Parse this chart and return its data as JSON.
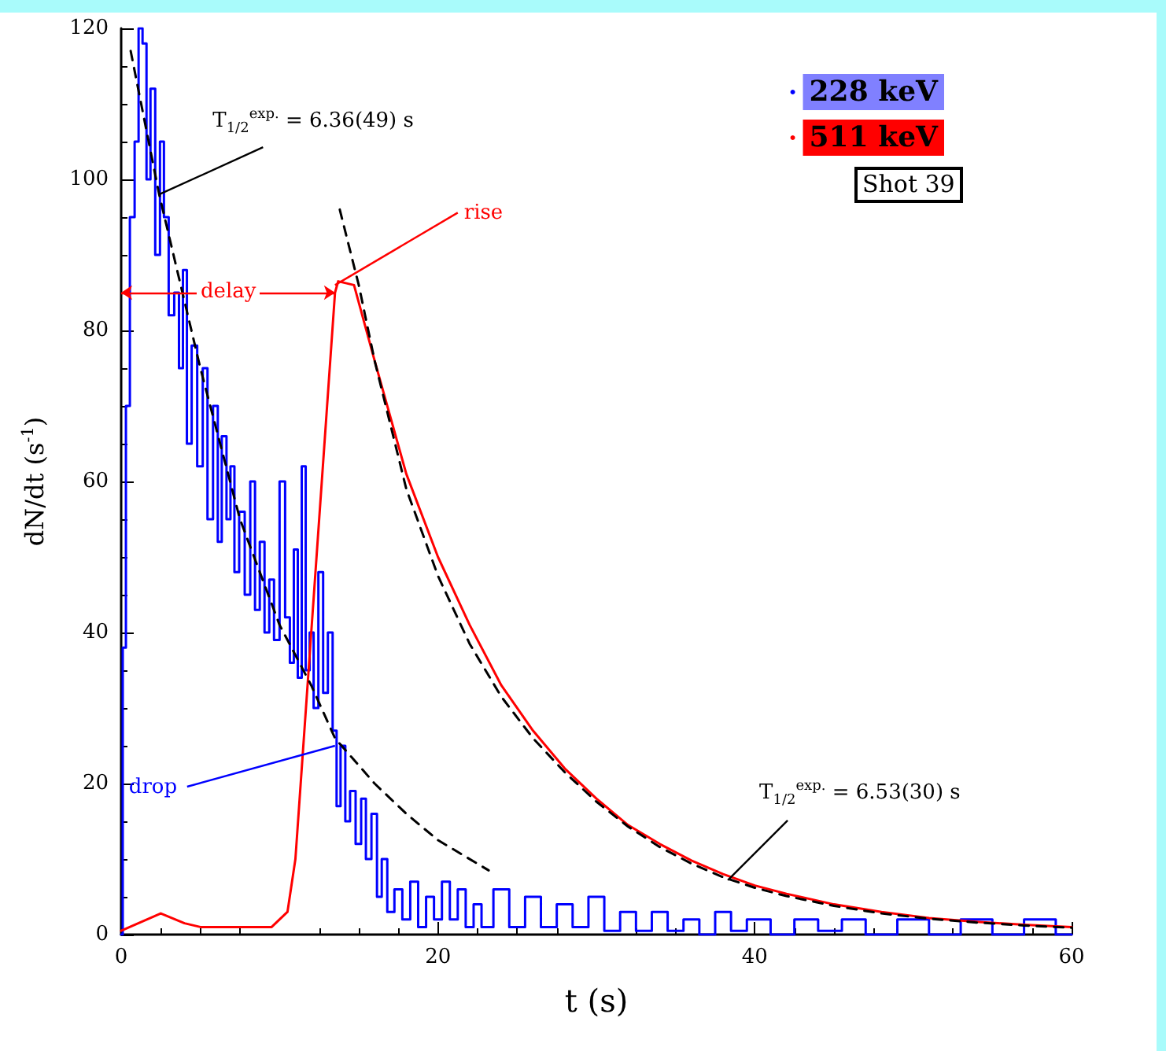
{
  "chart_data": {
    "type": "line",
    "xlabel": "t (s)",
    "ylabel": "dN/dt (s$^{-1}$)",
    "xlim": [
      0,
      60
    ],
    "xticks": [
      0,
      20,
      40,
      60
    ],
    "ylim": [
      0,
      120
    ],
    "yticks": [
      0,
      20,
      40,
      60,
      80,
      100,
      120
    ],
    "grid": false,
    "legend": "top right",
    "marker": "none",
    "series": [
      {
        "name": "228 keV",
        "type": "step",
        "color": "#0000ff",
        "x": [
          0,
          0.2,
          0.4,
          0.7,
          1,
          1.2,
          1.5,
          1.7,
          2,
          2.3,
          2.6,
          2.8,
          3.2,
          3.5,
          3.8,
          4,
          4.3,
          4.6,
          5,
          5.3,
          5.6,
          6,
          6.2,
          6.5,
          6.8,
          7,
          7.3,
          7.6,
          8,
          8.3,
          8.6,
          8.9,
          9.2,
          9.5,
          9.8,
          10.2,
          10.5,
          10.8,
          11,
          11.3,
          11.5,
          11.8,
          12,
          12.3,
          12.6,
          12.9,
          13.2,
          13.5,
          13.7,
          14,
          14.3,
          14.6,
          15,
          15.3,
          15.6,
          16,
          16.3,
          16.6,
          17,
          17.5,
          18,
          18.5,
          19,
          19.5,
          20,
          20.5,
          21,
          21.5,
          22,
          22.5,
          23,
          24,
          25,
          26,
          27,
          28,
          29,
          30,
          31,
          32,
          33,
          34,
          35,
          36,
          37,
          38,
          39,
          40,
          42,
          43,
          45,
          46,
          48,
          50,
          52,
          54,
          56,
          58,
          60
        ],
        "values": [
          0,
          38,
          70,
          95,
          105,
          120,
          118,
          100,
          112,
          90,
          105,
          95,
          82,
          85,
          75,
          88,
          65,
          78,
          62,
          75,
          55,
          70,
          52,
          66,
          55,
          62,
          48,
          56,
          45,
          60,
          43,
          52,
          40,
          47,
          39,
          60,
          42,
          36,
          51,
          34,
          62,
          35,
          40,
          30,
          48,
          32,
          40,
          27,
          17,
          25,
          15,
          19,
          12,
          18,
          10,
          16,
          5,
          10,
          3,
          6,
          2,
          7,
          1,
          5,
          2,
          7,
          2,
          6,
          1,
          4,
          1,
          6,
          1,
          5,
          1,
          4,
          1,
          5,
          0.5,
          3,
          0.5,
          3,
          0.5,
          2,
          0,
          3,
          0.5,
          2,
          0,
          2,
          0.5,
          2,
          0,
          2,
          0,
          2,
          0,
          2,
          0
        ]
      },
      {
        "name": "511 keV",
        "color": "#ff0000",
        "x": [
          0,
          2.5,
          4,
          5,
          9.5,
          10.5,
          11,
          12,
          13,
          13.5,
          13.7,
          14.7,
          16,
          18,
          20,
          22,
          24,
          26,
          28,
          30,
          32,
          34,
          36,
          38,
          40,
          42,
          45,
          48,
          51,
          54,
          57,
          60
        ],
        "values": [
          0.5,
          2.8,
          1.5,
          1,
          1,
          3,
          10,
          40,
          70,
          85,
          86.5,
          86,
          76,
          61,
          50,
          41,
          33,
          27,
          22,
          18,
          14.5,
          12,
          9.8,
          8,
          6.5,
          5.4,
          4,
          3,
          2.2,
          1.7,
          1.3,
          1
        ]
      },
      {
        "color": "#000000",
        "line_style": "dashed",
        "x": [
          0.6,
          2.4,
          5,
          7.5,
          10,
          12,
          13.5,
          16,
          18,
          20,
          23.2
        ],
        "values": [
          117,
          98,
          75,
          55,
          41,
          33,
          26,
          20,
          16,
          12.5,
          8.5
        ]
      },
      {
        "color": "#000000",
        "line_style": "dashed",
        "x": [
          13.8,
          15,
          16,
          18,
          20,
          22,
          24,
          26,
          28,
          30,
          32,
          34,
          36,
          38,
          40,
          42,
          45,
          48,
          51,
          54,
          57,
          60
        ],
        "values": [
          96,
          86,
          76,
          59,
          47.5,
          38.5,
          31.5,
          26,
          21.5,
          17.6,
          14.3,
          11.6,
          9.4,
          7.6,
          6.2,
          5.1,
          3.8,
          2.8,
          2.1,
          1.6,
          1.2,
          0.9
        ]
      }
    ],
    "annotations": [
      {
        "text": "T$_{1/2}$$^{exp.}$ = 6.36(49) s",
        "x": 2.4,
        "y": 98
      },
      {
        "text": "delay",
        "x": 6.75,
        "y": 85
      },
      {
        "text": "rise",
        "x": 13.5,
        "y": 86
      },
      {
        "text": "drop",
        "x": 13.5,
        "y": 25
      },
      {
        "text": "T$_{1/2}$$^{exp.}$ = 6.53(30) s",
        "x": 38.3,
        "y": 7.2
      },
      "Shot 39"
    ]
  }
}
